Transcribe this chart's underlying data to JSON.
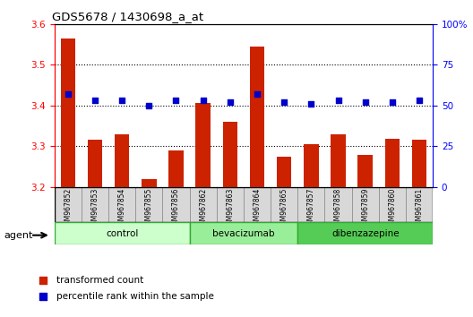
{
  "title": "GDS5678 / 1430698_a_at",
  "samples": [
    "GSM967852",
    "GSM967853",
    "GSM967854",
    "GSM967855",
    "GSM967856",
    "GSM967862",
    "GSM967863",
    "GSM967864",
    "GSM967865",
    "GSM967857",
    "GSM967858",
    "GSM967859",
    "GSM967860",
    "GSM967861"
  ],
  "transformed_count": [
    3.565,
    3.315,
    3.33,
    3.22,
    3.29,
    3.405,
    3.36,
    3.545,
    3.275,
    3.305,
    3.33,
    3.278,
    3.318,
    3.315
  ],
  "percentile_rank": [
    57,
    53,
    53,
    50,
    53,
    53,
    52,
    57,
    52,
    51,
    53,
    52,
    52,
    53
  ],
  "groups": [
    {
      "label": "control",
      "start": 0,
      "end": 5
    },
    {
      "label": "bevacizumab",
      "start": 5,
      "end": 9
    },
    {
      "label": "dibenzazepine",
      "start": 9,
      "end": 14
    }
  ],
  "group_colors": [
    "#ccffcc",
    "#99ee99",
    "#55cc55"
  ],
  "ylim_left": [
    3.2,
    3.6
  ],
  "ylim_right": [
    0,
    100
  ],
  "yticks_left": [
    3.2,
    3.3,
    3.4,
    3.5,
    3.6
  ],
  "yticks_right": [
    0,
    25,
    50,
    75,
    100
  ],
  "bar_color": "#cc2200",
  "dot_color": "#0000cc",
  "legend_items": [
    {
      "label": "transformed count",
      "color": "#cc2200"
    },
    {
      "label": "percentile rank within the sample",
      "color": "#0000cc"
    }
  ],
  "agent_label": "agent",
  "bar_width": 0.55
}
